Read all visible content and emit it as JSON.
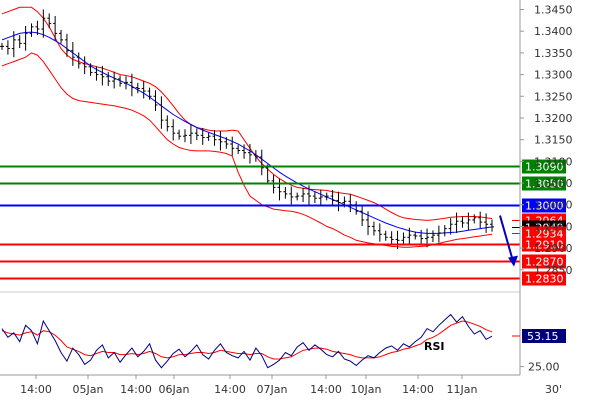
{
  "chart_data": [
    {
      "type": "line",
      "subtype": "candlestick-with-bollinger-bands",
      "symbol": "",
      "timeframe": "30'",
      "title": "",
      "xlabel": "",
      "ylabel": "",
      "ylim": [
        1.2815,
        1.3465
      ],
      "grid": false,
      "y_ticks": [
        "1.3450",
        "1.3400",
        "1.3350",
        "1.3300",
        "1.3250",
        "1.3200",
        "1.3150",
        "1.3100",
        "1.3050",
        "1.3000",
        "1.2950",
        "1.2900",
        "1.2850"
      ],
      "x_ticks": [
        "14:00",
        "05Jan",
        "14:00",
        "06Jan",
        "14:00",
        "07Jan",
        "14:00",
        "10Jan",
        "14:00",
        "11Jan"
      ],
      "timeframe_label": "30'",
      "price": [
        1.3365,
        1.336,
        1.338,
        1.3372,
        1.3395,
        1.341,
        1.3405,
        1.343,
        1.3418,
        1.3395,
        1.338,
        1.3355,
        1.334,
        1.3325,
        1.3318,
        1.3305,
        1.33,
        1.3295,
        1.3285,
        1.329,
        1.328,
        1.3282,
        1.327,
        1.3268,
        1.3262,
        1.325,
        1.323,
        1.3195,
        1.318,
        1.3165,
        1.3158,
        1.316,
        1.3165,
        1.316,
        1.3155,
        1.3158,
        1.315,
        1.3145,
        1.314,
        1.313,
        1.3125,
        1.312,
        1.3115,
        1.311,
        1.3085,
        1.3055,
        1.304,
        1.303,
        1.3025,
        1.3018,
        1.302,
        1.3025,
        1.302,
        1.3015,
        1.3018,
        1.302,
        1.301,
        1.3005,
        1.3008,
        1.3,
        1.2985,
        1.2965,
        1.295,
        1.294,
        1.2932,
        1.2925,
        1.292,
        1.2918,
        1.2925,
        1.293,
        1.2928,
        1.2922,
        1.2925,
        1.293,
        1.2935,
        1.2945,
        1.2955,
        1.2962,
        1.2958,
        1.2965,
        1.297,
        1.296,
        1.2955,
        1.2949
      ],
      "bollinger_upper": [
        1.344,
        1.3445,
        1.345,
        1.3455,
        1.3455,
        1.3455,
        1.3445,
        1.343,
        1.341,
        1.3385,
        1.336,
        1.3345,
        1.3335,
        1.333,
        1.3325,
        1.3322,
        1.3318,
        1.3315,
        1.331,
        1.3305,
        1.33,
        1.3298,
        1.3295,
        1.329,
        1.3285,
        1.328,
        1.3272,
        1.326,
        1.3245,
        1.3228,
        1.321,
        1.3195,
        1.3185,
        1.3178,
        1.3175,
        1.3172,
        1.317,
        1.317,
        1.317,
        1.3172,
        1.317,
        1.315,
        1.313,
        1.311,
        1.3095,
        1.3082,
        1.307,
        1.306,
        1.3052,
        1.3045,
        1.304,
        1.3038,
        1.3036,
        1.3035,
        1.3034,
        1.3033,
        1.303,
        1.3028,
        1.3026,
        1.3024,
        1.302,
        1.3015,
        1.301,
        1.3005,
        1.2998,
        1.299,
        1.2982,
        1.2975,
        1.297,
        1.2968,
        1.2966,
        1.2965,
        1.2964,
        1.2965,
        1.2967,
        1.2969,
        1.2971,
        1.2972,
        1.2973,
        1.2973,
        1.2973,
        1.2972,
        1.297,
        1.2968
      ],
      "bollinger_lower": [
        1.332,
        1.3325,
        1.333,
        1.3335,
        1.334,
        1.335,
        1.3345,
        1.333,
        1.331,
        1.329,
        1.327,
        1.3255,
        1.3245,
        1.324,
        1.3238,
        1.3236,
        1.3234,
        1.3232,
        1.323,
        1.3228,
        1.3225,
        1.3222,
        1.3218,
        1.3212,
        1.3205,
        1.3195,
        1.318,
        1.3165,
        1.315,
        1.314,
        1.3132,
        1.3128,
        1.3125,
        1.3124,
        1.3124,
        1.3124,
        1.3123,
        1.3121,
        1.3118,
        1.3112,
        1.3075,
        1.3045,
        1.302,
        1.301,
        1.3,
        1.2995,
        1.299,
        1.2988,
        1.2986,
        1.2985,
        1.2982,
        1.2978,
        1.2972,
        1.2965,
        1.2958,
        1.295,
        1.2945,
        1.2938,
        1.293,
        1.2925,
        1.2918,
        1.2915,
        1.2912,
        1.291,
        1.2908,
        1.2906,
        1.2904,
        1.2903,
        1.2902,
        1.2902,
        1.2903,
        1.2904,
        1.2905,
        1.2908,
        1.2911,
        1.2914,
        1.2917,
        1.292,
        1.2922,
        1.2924,
        1.2926,
        1.2928,
        1.293,
        1.2932
      ],
      "moving_average": [
        1.338,
        1.3385,
        1.339,
        1.3395,
        1.3397,
        1.3398,
        1.3396,
        1.3392,
        1.3386,
        1.3378,
        1.337,
        1.336,
        1.335,
        1.334,
        1.333,
        1.332,
        1.3312,
        1.3305,
        1.3298,
        1.3292,
        1.3286,
        1.328,
        1.3273,
        1.3265,
        1.3257,
        1.3248,
        1.3238,
        1.3228,
        1.3218,
        1.3208,
        1.32,
        1.3192,
        1.3185,
        1.3178,
        1.3172,
        1.3167,
        1.3162,
        1.3157,
        1.3152,
        1.3146,
        1.314,
        1.3132,
        1.3124,
        1.3115,
        1.3105,
        1.3095,
        1.3085,
        1.3075,
        1.3066,
        1.3058,
        1.305,
        1.3043,
        1.3036,
        1.303,
        1.3024,
        1.3018,
        1.3012,
        1.3006,
        1.3,
        1.2994,
        1.2988,
        1.2982,
        1.2976,
        1.297,
        1.2964,
        1.2958,
        1.2953,
        1.2948,
        1.2944,
        1.294,
        1.2937,
        1.2935,
        1.2934,
        1.2934,
        1.2934,
        1.2935,
        1.2936,
        1.2937,
        1.2939,
        1.2941,
        1.2943,
        1.2945,
        1.2947,
        1.2949
      ],
      "levels": [
        {
          "label": "1.3090",
          "value": 1.309,
          "color": "#008000"
        },
        {
          "label": "1.3050",
          "value": 1.305,
          "color": "#008000"
        },
        {
          "label": "1.3000",
          "value": 1.3,
          "color": "#0000ff"
        },
        {
          "label": "1.2910",
          "value": 1.291,
          "color": "#ff0000"
        },
        {
          "label": "1.2870",
          "value": 1.287,
          "color": "#ff0000"
        },
        {
          "label": "1.2830",
          "value": 1.283,
          "color": "#ff0000"
        }
      ],
      "right_labels": [
        {
          "label": "1.2964",
          "value": 1.2964,
          "color": "#ff0000"
        },
        {
          "label": "1.2949",
          "value": 1.2949,
          "color": "#000000"
        },
        {
          "label": "1.2934",
          "value": 1.2934,
          "color": "#ff0000"
        }
      ],
      "colors": {
        "price": "#000000",
        "bands": "#ff0000",
        "moving_average": "#0000ff",
        "projection_arrow": "#0000c0"
      }
    },
    {
      "type": "line",
      "name": "RSI",
      "label": "RSI",
      "ylim": [
        20,
        90
      ],
      "y_ticks": [
        "25.00"
      ],
      "current_value": "53.15",
      "rsi": [
        60,
        52,
        56,
        48,
        63,
        58,
        46,
        67,
        58,
        49,
        38,
        30,
        42,
        36,
        27,
        31,
        40,
        45,
        33,
        38,
        29,
        36,
        42,
        34,
        39,
        46,
        31,
        24,
        30,
        37,
        41,
        34,
        39,
        45,
        36,
        32,
        40,
        46,
        38,
        35,
        33,
        39,
        31,
        42,
        35,
        24,
        27,
        31,
        38,
        35,
        43,
        47,
        40,
        45,
        41,
        36,
        34,
        39,
        32,
        30,
        26,
        31,
        35,
        33,
        38,
        42,
        44,
        40,
        46,
        43,
        48,
        52,
        60,
        57,
        63,
        68,
        73,
        66,
        71,
        62,
        55,
        58,
        50,
        53
      ],
      "signal": [
        58,
        56,
        55,
        54,
        56,
        57,
        54,
        58,
        57,
        54,
        49,
        43,
        41,
        39,
        36,
        35,
        37,
        39,
        38,
        38,
        36,
        36,
        37,
        36,
        37,
        39,
        37,
        34,
        33,
        34,
        36,
        36,
        37,
        38,
        38,
        37,
        38,
        40,
        39,
        38,
        37,
        37,
        36,
        37,
        37,
        34,
        32,
        32,
        33,
        34,
        37,
        40,
        41,
        42,
        42,
        41,
        39,
        38,
        37,
        36,
        34,
        33,
        33,
        33,
        34,
        36,
        38,
        39,
        41,
        42,
        44,
        46,
        50,
        52,
        55,
        59,
        63,
        65,
        67,
        66,
        64,
        62,
        59,
        57
      ],
      "colors": {
        "rsi": "#000080",
        "signal": "#ff0000"
      }
    }
  ]
}
